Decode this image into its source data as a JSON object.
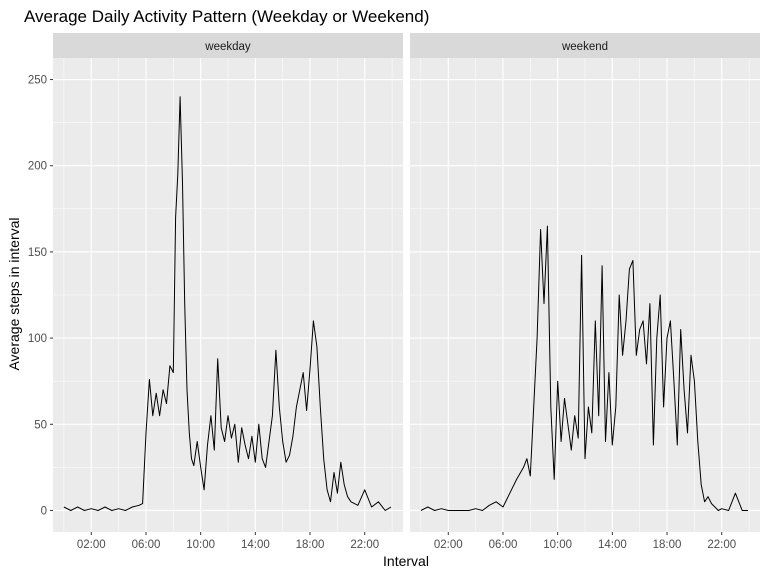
{
  "chart_data": {
    "type": "line",
    "title": "Average Daily Activity Pattern (Weekday or Weekend)",
    "xlabel": "Interval",
    "ylabel": "Average steps in interval",
    "x_unit": "time of day (hours)",
    "xlim": [
      0,
      24
    ],
    "ylim": [
      0,
      250
    ],
    "y_ticks": [
      0,
      50,
      100,
      150,
      200,
      250
    ],
    "x_ticks": [
      {
        "value": 2,
        "label": "02:00"
      },
      {
        "value": 6,
        "label": "06:00"
      },
      {
        "value": 10,
        "label": "10:00"
      },
      {
        "value": 14,
        "label": "14:00"
      },
      {
        "value": 18,
        "label": "18:00"
      },
      {
        "value": 22,
        "label": "22:00"
      }
    ],
    "grid": true,
    "line_color": "#000000",
    "panel_background": "#ebebeb",
    "strip_background": "#d9d9d9",
    "panels": [
      {
        "name": "weekday",
        "x": [
          0,
          0.5,
          1,
          1.5,
          2,
          2.5,
          3,
          3.5,
          4,
          4.5,
          5,
          5.5,
          5.75,
          6,
          6.25,
          6.5,
          6.75,
          7,
          7.25,
          7.5,
          7.75,
          8,
          8.17,
          8.33,
          8.5,
          8.67,
          8.83,
          9,
          9.17,
          9.33,
          9.5,
          9.75,
          10,
          10.25,
          10.5,
          10.75,
          11,
          11.25,
          11.5,
          11.75,
          12,
          12.25,
          12.5,
          12.75,
          13,
          13.25,
          13.5,
          13.75,
          14,
          14.25,
          14.5,
          14.75,
          15,
          15.25,
          15.5,
          15.75,
          16,
          16.25,
          16.5,
          16.75,
          17,
          17.25,
          17.5,
          17.75,
          18,
          18.25,
          18.5,
          18.75,
          19,
          19.25,
          19.5,
          19.75,
          20,
          20.25,
          20.5,
          20.75,
          21,
          21.5,
          22,
          22.5,
          23,
          23.5,
          23.92
        ],
        "y": [
          2,
          0,
          2,
          0,
          1,
          0,
          2,
          0,
          1,
          0,
          2,
          3,
          4,
          45,
          76,
          55,
          68,
          55,
          70,
          62,
          84,
          80,
          170,
          195,
          240,
          190,
          120,
          70,
          45,
          30,
          26,
          40,
          25,
          12,
          38,
          55,
          35,
          88,
          48,
          40,
          55,
          42,
          50,
          28,
          48,
          38,
          30,
          43,
          28,
          50,
          30,
          25,
          40,
          55,
          93,
          60,
          40,
          28,
          32,
          43,
          60,
          70,
          80,
          58,
          82,
          110,
          95,
          60,
          30,
          12,
          5,
          22,
          10,
          28,
          15,
          8,
          5,
          3,
          12,
          2,
          5,
          0,
          2
        ]
      },
      {
        "name": "weekend",
        "x": [
          0,
          0.5,
          1,
          1.5,
          2,
          2.5,
          3,
          3.5,
          4,
          4.5,
          5,
          5.5,
          6,
          6.5,
          7,
          7.5,
          7.75,
          8,
          8.25,
          8.5,
          8.75,
          9,
          9.25,
          9.5,
          9.75,
          10,
          10.25,
          10.5,
          10.75,
          11,
          11.25,
          11.5,
          11.75,
          12,
          12.25,
          12.5,
          12.75,
          13,
          13.25,
          13.5,
          13.75,
          14,
          14.25,
          14.5,
          14.75,
          15,
          15.25,
          15.5,
          15.75,
          16,
          16.25,
          16.5,
          16.75,
          17,
          17.25,
          17.5,
          17.75,
          18,
          18.25,
          18.5,
          18.75,
          19,
          19.25,
          19.5,
          19.75,
          20,
          20.25,
          20.5,
          20.75,
          21,
          21.25,
          21.5,
          21.75,
          22,
          22.5,
          23,
          23.5,
          23.92
        ],
        "y": [
          0,
          2,
          0,
          1,
          0,
          0,
          0,
          0,
          1,
          0,
          3,
          5,
          2,
          10,
          18,
          25,
          30,
          20,
          60,
          100,
          163,
          120,
          165,
          60,
          18,
          75,
          40,
          65,
          50,
          35,
          55,
          42,
          148,
          30,
          60,
          45,
          110,
          55,
          142,
          40,
          80,
          38,
          60,
          125,
          90,
          110,
          140,
          145,
          90,
          105,
          110,
          85,
          120,
          38,
          100,
          125,
          60,
          100,
          110,
          75,
          38,
          105,
          70,
          45,
          90,
          75,
          40,
          15,
          5,
          8,
          4,
          2,
          0,
          1,
          0,
          10,
          0,
          0
        ]
      }
    ]
  }
}
